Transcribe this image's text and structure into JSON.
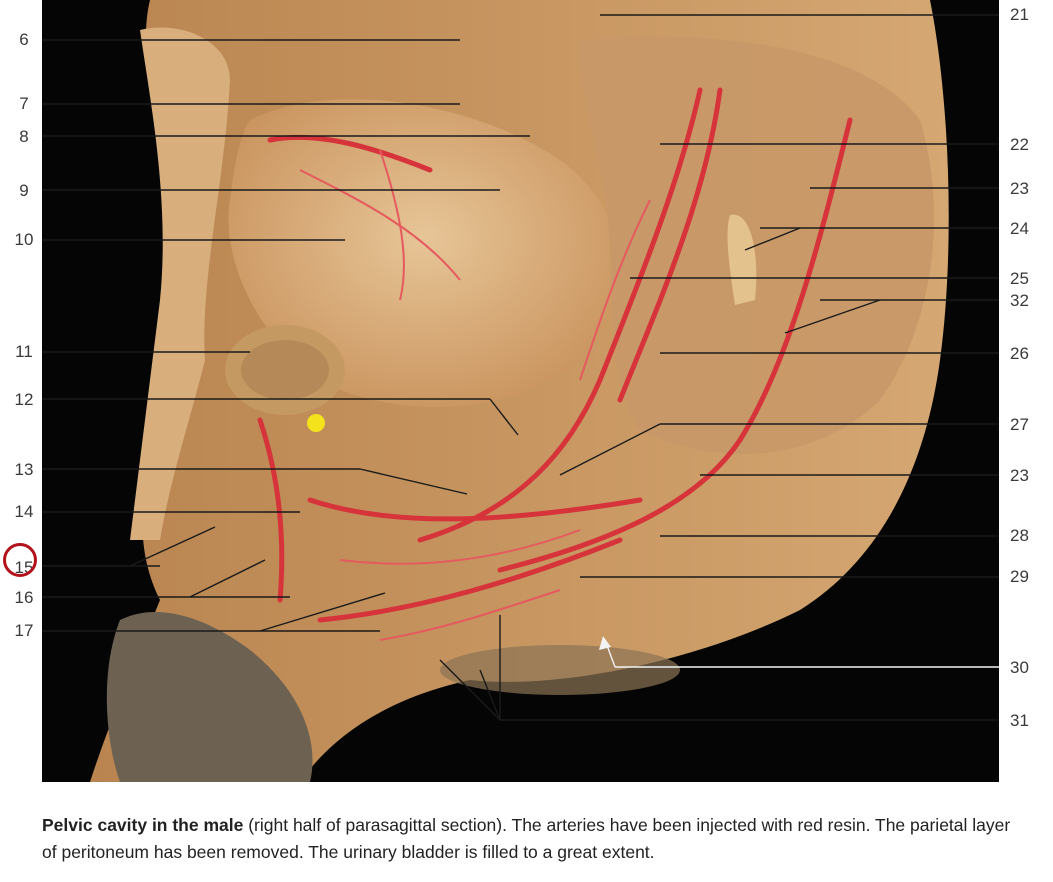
{
  "labels_left": [
    {
      "id": "6",
      "text": "6"
    },
    {
      "id": "7",
      "text": "7"
    },
    {
      "id": "8",
      "text": "8"
    },
    {
      "id": "9",
      "text": "9"
    },
    {
      "id": "10",
      "text": "10"
    },
    {
      "id": "11",
      "text": "11"
    },
    {
      "id": "12",
      "text": "12"
    },
    {
      "id": "13",
      "text": "13"
    },
    {
      "id": "14",
      "text": "14"
    },
    {
      "id": "15",
      "text": "15"
    },
    {
      "id": "16",
      "text": "16"
    },
    {
      "id": "17",
      "text": "17"
    }
  ],
  "labels_right": [
    {
      "id": "21",
      "text": "21"
    },
    {
      "id": "22",
      "text": "22"
    },
    {
      "id": "23a",
      "text": "23"
    },
    {
      "id": "24",
      "text": "24"
    },
    {
      "id": "25",
      "text": "25"
    },
    {
      "id": "32",
      "text": "32"
    },
    {
      "id": "26",
      "text": "26"
    },
    {
      "id": "27",
      "text": "27"
    },
    {
      "id": "23b",
      "text": "23"
    },
    {
      "id": "28",
      "text": "28"
    },
    {
      "id": "29",
      "text": "29"
    },
    {
      "id": "30",
      "text": "30"
    },
    {
      "id": "31",
      "text": "31"
    }
  ],
  "highlighted_label": "15",
  "caption": {
    "title": "Pelvic cavity in the male",
    "body": " (right half of parasagittal section). The arteries have been injected with red resin. The parietal layer of peritoneum has been removed. The urinary bladder is filled to a great extent."
  },
  "colors": {
    "background": "#000000",
    "tissue": "#d9b07a",
    "artery": "#d6343a",
    "marker": "#b3121b",
    "highlight_dot": "#f3e21c"
  }
}
